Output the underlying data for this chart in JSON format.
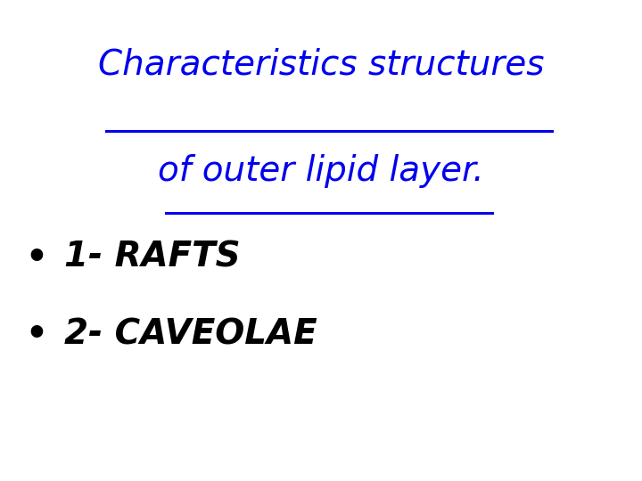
{
  "background_color": "#ffffff",
  "title_line1": "Characteristics structures",
  "title_line2": "of outer lipid layer.",
  "title_color": "#0000ee",
  "title_fontsize": 28,
  "title_fontstyle": "italic",
  "title_fontweight": "normal",
  "bullet_items": [
    "1- RAFTS",
    "2- CAVEOLAE"
  ],
  "bullet_color": "#000000",
  "bullet_fontsize": 28,
  "bullet_fontstyle": "italic",
  "bullet_fontweight": "bold",
  "bullet_symbol": "•",
  "figsize": [
    7.2,
    5.4
  ],
  "dpi": 100
}
